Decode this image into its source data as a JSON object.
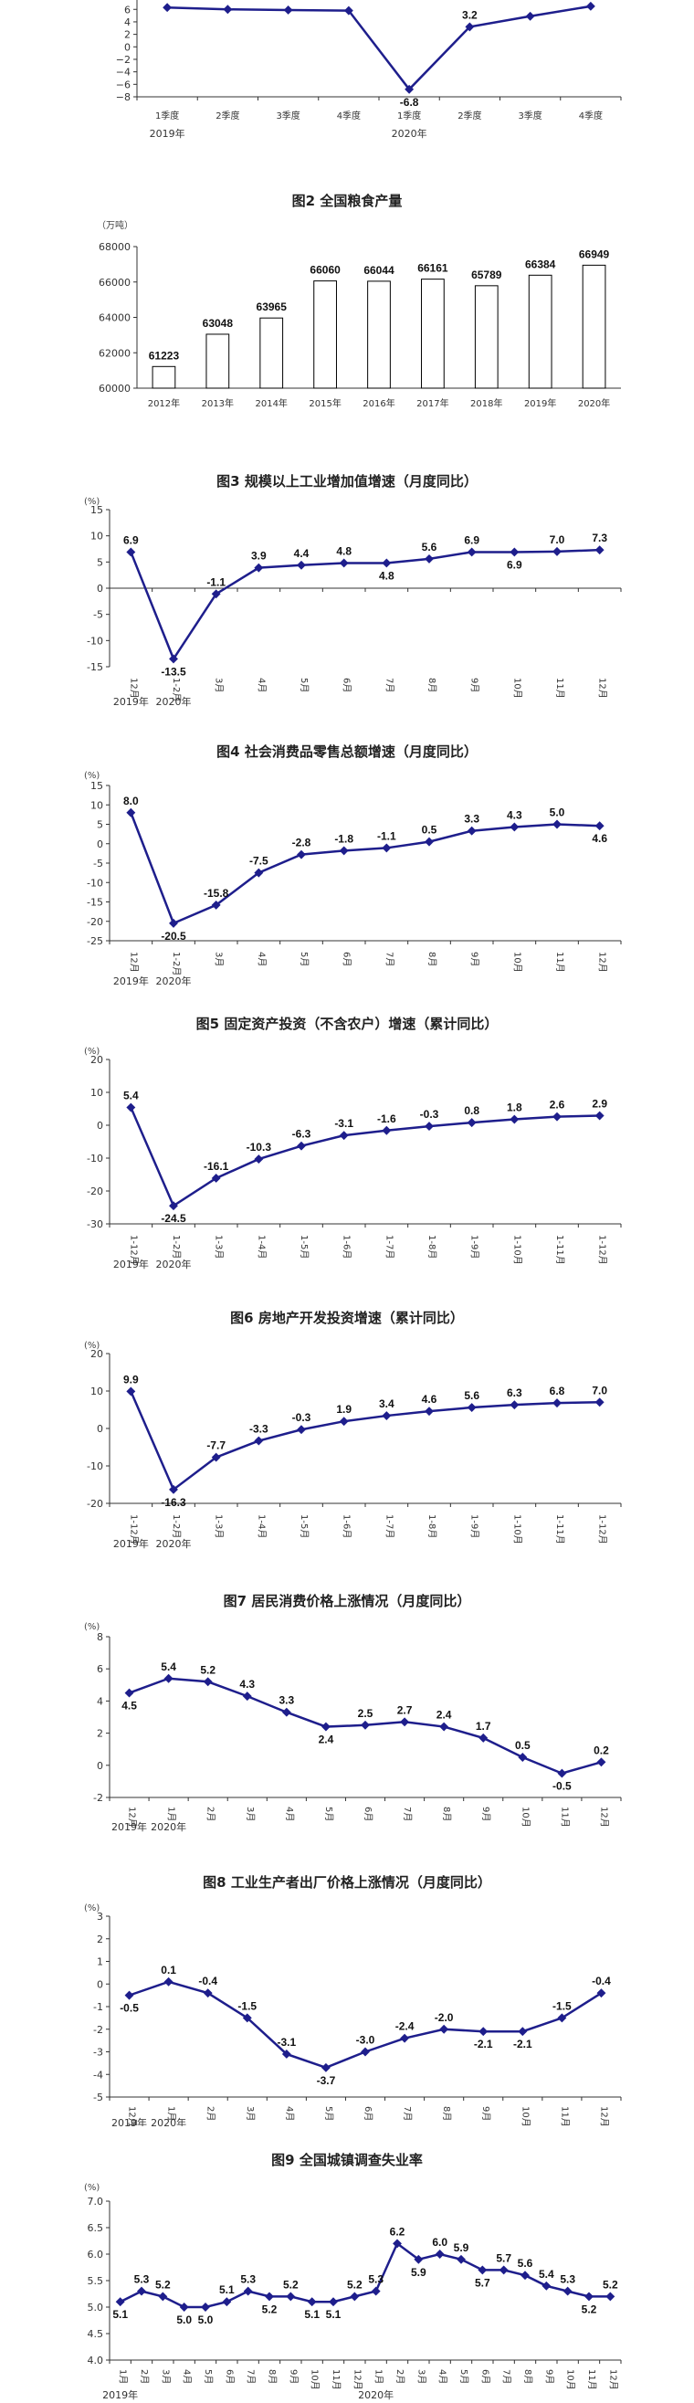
{
  "chart_data": [
    {
      "id": "gdp",
      "type": "line",
      "title": "",
      "unit": "",
      "categories": [
        "1季度",
        "2季度",
        "3季度",
        "4季度",
        "1季度",
        "2季度",
        "3季度",
        "4季度"
      ],
      "year_labels": [
        {
          "label": "2019年",
          "index": 0
        },
        {
          "label": "2020年",
          "index": 4
        }
      ],
      "values": [
        6.3,
        6.0,
        5.9,
        5.8,
        -6.8,
        3.2,
        4.9,
        6.5
      ],
      "visible_labels": {
        "4": "-6.8",
        "5": "3.2"
      },
      "yticks": [
        "6",
        "4",
        "2",
        "0",
        "−2",
        "−4",
        "−6",
        "−8"
      ],
      "ylim": [
        -8,
        7.5
      ],
      "axis_at": -8,
      "color": "#1e1e8c"
    },
    {
      "id": "grain",
      "type": "bar",
      "title": "图2  全国粮食产量",
      "unit": "（万吨）",
      "categories": [
        "2012年",
        "2013年",
        "2014年",
        "2015年",
        "2016年",
        "2017年",
        "2018年",
        "2019年",
        "2020年"
      ],
      "values": [
        61223,
        63048,
        63965,
        66060,
        66044,
        66161,
        65789,
        66384,
        66949
      ],
      "yticks": [
        "68000",
        "66000",
        "64000",
        "62000",
        "60000"
      ],
      "ylim": [
        60000,
        68000
      ]
    },
    {
      "id": "industry",
      "type": "line",
      "title": "图3  规模以上工业增加值增速（月度同比）",
      "unit": "(%)",
      "categories": [
        "12月",
        "1-2月",
        "3月",
        "4月",
        "5月",
        "6月",
        "7月",
        "8月",
        "9月",
        "10月",
        "11月",
        "12月"
      ],
      "year_labels": [
        {
          "label": "2019年",
          "index": 0
        },
        {
          "label": "2020年",
          "index": 1
        }
      ],
      "values": [
        6.9,
        -13.5,
        -1.1,
        3.9,
        4.4,
        4.8,
        4.8,
        5.6,
        6.9,
        6.9,
        7.0,
        7.3
      ],
      "yticks": [
        "15",
        "10",
        "5",
        "0",
        "-5",
        "-10",
        "-15"
      ],
      "ylim": [
        -15,
        15
      ],
      "axis_at": 0,
      "color": "#1e1e8c"
    },
    {
      "id": "retail",
      "type": "line",
      "title": "图4  社会消费品零售总额增速（月度同比）",
      "unit": "(%)",
      "categories": [
        "12月",
        "1-2月",
        "3月",
        "4月",
        "5月",
        "6月",
        "7月",
        "8月",
        "9月",
        "10月",
        "11月",
        "12月"
      ],
      "year_labels": [
        {
          "label": "2019年",
          "index": 0
        },
        {
          "label": "2020年",
          "index": 1
        }
      ],
      "values": [
        8.0,
        -20.5,
        -15.8,
        -7.5,
        -2.8,
        -1.8,
        -1.1,
        0.5,
        3.3,
        4.3,
        5.0,
        4.6
      ],
      "yticks": [
        "15",
        "10",
        "5",
        "0",
        "-5",
        "-10",
        "-15",
        "-20",
        "-25"
      ],
      "ylim": [
        -25,
        15
      ],
      "axis_at": -25,
      "color": "#1e1e8c"
    },
    {
      "id": "fai",
      "type": "line",
      "title": "图5  固定资产投资（不含农户）增速（累计同比）",
      "unit": "(%)",
      "categories": [
        "1-12月",
        "1-2月",
        "1-3月",
        "1-4月",
        "1-5月",
        "1-6月",
        "1-7月",
        "1-8月",
        "1-9月",
        "1-10月",
        "1-11月",
        "1-12月"
      ],
      "year_labels": [
        {
          "label": "2019年",
          "index": 0
        },
        {
          "label": "2020年",
          "index": 1
        }
      ],
      "values": [
        5.4,
        -24.5,
        -16.1,
        -10.3,
        -6.3,
        -3.1,
        -1.6,
        -0.3,
        0.8,
        1.8,
        2.6,
        2.9
      ],
      "yticks": [
        "20",
        "10",
        "0",
        "-10",
        "-20",
        "-30"
      ],
      "ylim": [
        -30,
        20
      ],
      "axis_at": -30,
      "color": "#1e1e8c"
    },
    {
      "id": "realestate",
      "type": "line",
      "title": "图6  房地产开发投资增速（累计同比）",
      "unit": "(%)",
      "categories": [
        "1-12月",
        "1-2月",
        "1-3月",
        "1-4月",
        "1-5月",
        "1-6月",
        "1-7月",
        "1-8月",
        "1-9月",
        "1-10月",
        "1-11月",
        "1-12月"
      ],
      "year_labels": [
        {
          "label": "2019年",
          "index": 0
        },
        {
          "label": "2020年",
          "index": 1
        }
      ],
      "values": [
        9.9,
        -16.3,
        -7.7,
        -3.3,
        -0.3,
        1.9,
        3.4,
        4.6,
        5.6,
        6.3,
        6.8,
        7.0
      ],
      "yticks": [
        "20",
        "10",
        "0",
        "-10",
        "-20"
      ],
      "ylim": [
        -20,
        20
      ],
      "axis_at": -20,
      "color": "#1e1e8c"
    },
    {
      "id": "cpi",
      "type": "line",
      "title": "图7  居民消费价格上涨情况（月度同比）",
      "unit": "(%)",
      "categories": [
        "12月",
        "1月",
        "2月",
        "3月",
        "4月",
        "5月",
        "6月",
        "7月",
        "8月",
        "9月",
        "10月",
        "11月",
        "12月"
      ],
      "year_labels": [
        {
          "label": "2019年",
          "index": 0
        },
        {
          "label": "2020年",
          "index": 1
        }
      ],
      "values": [
        4.5,
        5.4,
        5.2,
        4.3,
        3.3,
        2.4,
        2.5,
        2.7,
        2.4,
        1.7,
        0.5,
        -0.5,
        0.2
      ],
      "yticks": [
        "8",
        "6",
        "4",
        "2",
        "0",
        "-2"
      ],
      "ylim": [
        -2,
        8
      ],
      "axis_at": -2,
      "color": "#1e1e8c"
    },
    {
      "id": "ppi",
      "type": "line",
      "title": "图8  工业生产者出厂价格上涨情况（月度同比）",
      "unit": "(%)",
      "categories": [
        "12月",
        "1月",
        "2月",
        "3月",
        "4月",
        "5月",
        "6月",
        "7月",
        "8月",
        "9月",
        "10月",
        "11月",
        "12月"
      ],
      "year_labels": [
        {
          "label": "2019年",
          "index": 0
        },
        {
          "label": "2020年",
          "index": 1
        }
      ],
      "values": [
        -0.5,
        0.1,
        -0.4,
        -1.5,
        -3.1,
        -3.7,
        -3.0,
        -2.4,
        -2.0,
        -2.1,
        -2.1,
        -1.5,
        -0.4
      ],
      "yticks": [
        "3",
        "2",
        "1",
        "0",
        "-1",
        "-2",
        "-3",
        "-4",
        "-5"
      ],
      "ylim": [
        -5,
        3
      ],
      "axis_at": -5,
      "color": "#1e1e8c"
    },
    {
      "id": "unemployment",
      "type": "line",
      "title": "图9  全国城镇调查失业率",
      "unit": "(%)",
      "categories": [
        "1月",
        "2月",
        "3月",
        "4月",
        "5月",
        "6月",
        "7月",
        "8月",
        "9月",
        "10月",
        "11月",
        "12月",
        "1月",
        "2月",
        "3月",
        "4月",
        "5月",
        "6月",
        "7月",
        "8月",
        "9月",
        "10月",
        "11月",
        "12月"
      ],
      "year_labels": [
        {
          "label": "2019年",
          "index": 0
        },
        {
          "label": "2020年",
          "index": 12
        }
      ],
      "values": [
        5.1,
        5.3,
        5.2,
        5.0,
        5.0,
        5.1,
        5.3,
        5.2,
        5.2,
        5.1,
        5.1,
        5.2,
        5.3,
        6.2,
        5.9,
        6.0,
        5.9,
        5.7,
        5.7,
        5.6,
        5.4,
        5.3,
        5.2,
        5.2
      ],
      "yticks": [
        "7.0",
        "6.5",
        "6.0",
        "5.5",
        "5.0",
        "4.5",
        "4.0"
      ],
      "ylim": [
        4.0,
        7.0
      ],
      "axis_at": 4.0,
      "color": "#1e1e8c"
    }
  ]
}
